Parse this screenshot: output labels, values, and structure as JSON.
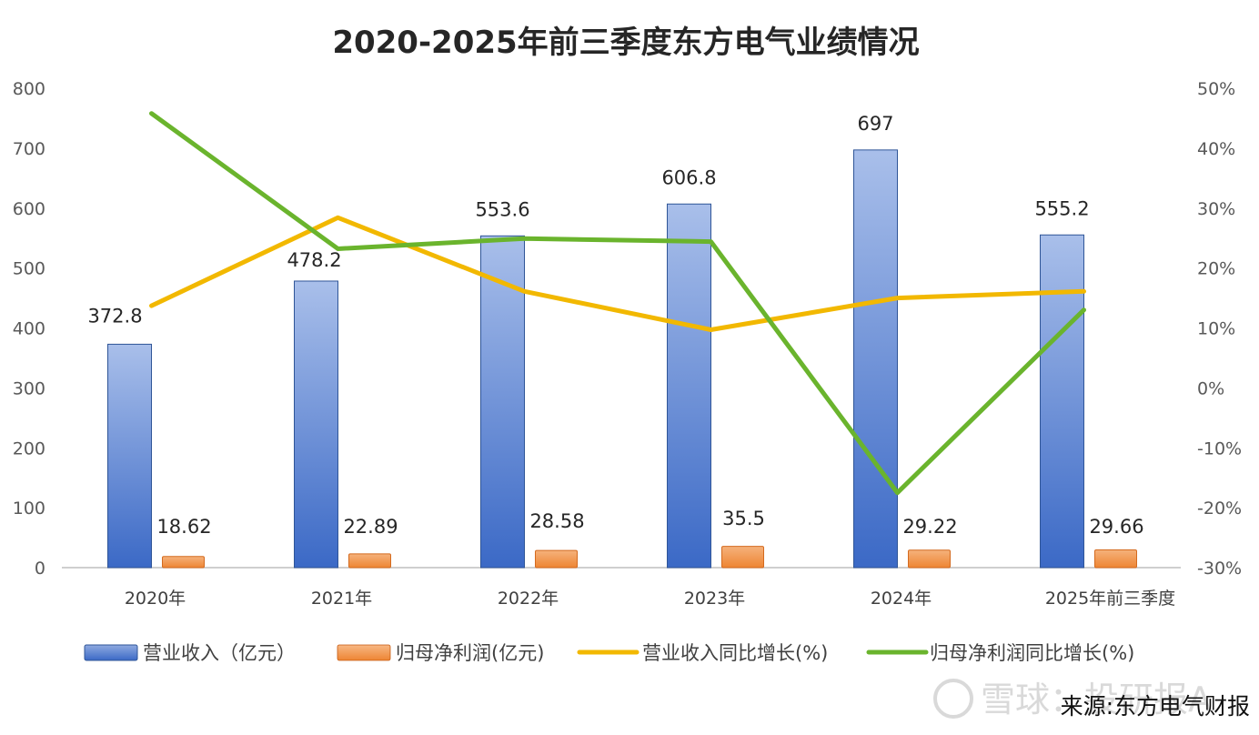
{
  "chart_data": {
    "type": "bar",
    "title": "2020-2025年前三季度东方电气业绩情况",
    "categories": [
      "2020年",
      "2021年",
      "2022年",
      "2023年",
      "2024年",
      "2025年前三季度"
    ],
    "xlabel": "",
    "ylabel": "",
    "y_left": {
      "min": 0,
      "max": 800,
      "step": 100,
      "ticks": [
        "0",
        "100",
        "200",
        "300",
        "400",
        "500",
        "600",
        "700",
        "800"
      ]
    },
    "y_right": {
      "min": -30,
      "max": 50,
      "step": 10,
      "ticks": [
        "-30%",
        "-20%",
        "-10%",
        "0%",
        "10%",
        "20%",
        "30%",
        "40%",
        "50%"
      ]
    },
    "grid": false,
    "legend_position": "bottom",
    "series": [
      {
        "name": "营业收入（亿元）",
        "type": "bar",
        "axis": "left",
        "color": "#4472C4",
        "values": [
          372.8,
          478.2,
          553.6,
          606.8,
          697,
          555.2
        ],
        "labels": [
          "372.8",
          "478.2",
          "553.6",
          "606.8",
          "697",
          "555.2"
        ]
      },
      {
        "name": "归母净利润(亿元)",
        "type": "bar",
        "axis": "left",
        "color": "#ED7D31",
        "values": [
          18.62,
          22.89,
          28.58,
          35.5,
          29.22,
          29.66
        ],
        "labels": [
          "18.62",
          "22.89",
          "28.58",
          "35.5",
          "29.22",
          "29.66"
        ]
      },
      {
        "name": "营业收入同比增长(%)",
        "type": "line",
        "axis": "right",
        "color": "#F2B800",
        "values": [
          13.7,
          28.4,
          16.1,
          9.7,
          15.0,
          16.1
        ]
      },
      {
        "name": "归母净利润同比增长(%)",
        "type": "line",
        "axis": "right",
        "color": "#6AB42D",
        "values": [
          45.8,
          23.2,
          24.9,
          24.4,
          -17.5,
          13.0
        ]
      }
    ],
    "annotations": {
      "source": "来源:东方电气财报",
      "watermark": "雪球：投研报A"
    }
  }
}
